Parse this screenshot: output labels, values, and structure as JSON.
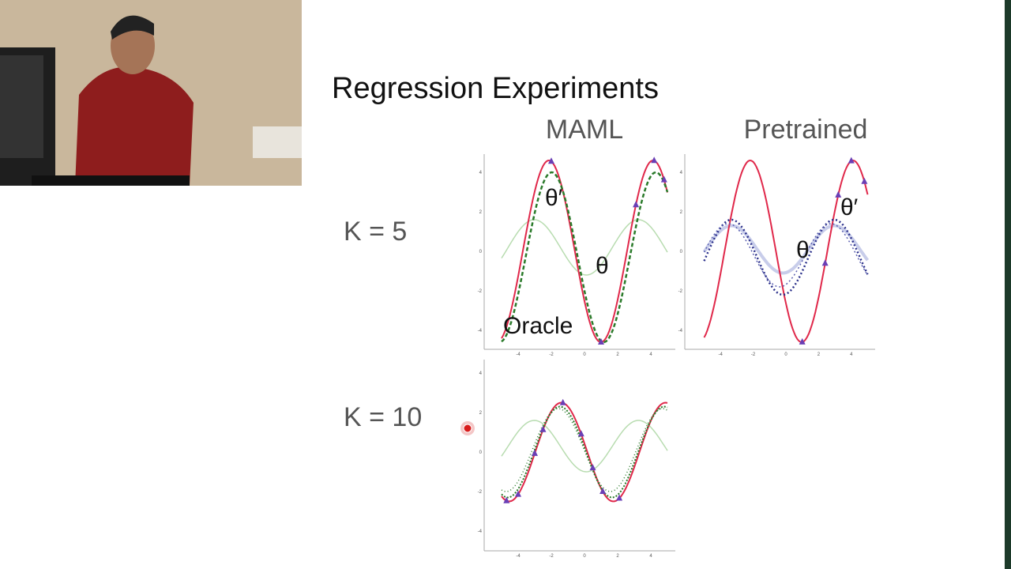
{
  "slide": {
    "title": "Regression Experiments",
    "columns": [
      "MAML",
      "Pretrained"
    ],
    "rows": [
      "K = 5",
      "K = 10"
    ],
    "annotations": {
      "maml_k5": [
        "θ′",
        "θ",
        "Oracle"
      ],
      "pretrained_k5": [
        "θ",
        "θ′"
      ]
    },
    "xticks": [
      "-4",
      "-2",
      "0",
      "2",
      "4"
    ],
    "yticks": [
      "4",
      "2",
      "0",
      "-2",
      "-4"
    ]
  }
}
